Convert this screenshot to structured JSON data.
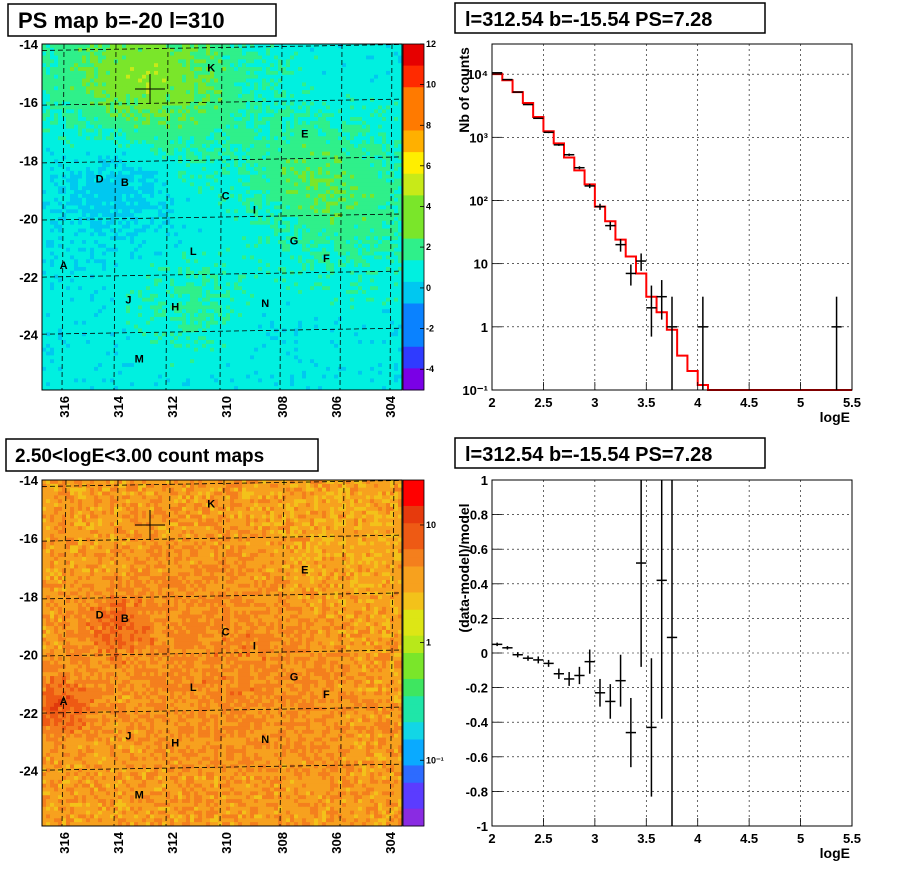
{
  "maps": [
    {
      "title": "PS map b=-20 l=310",
      "palette": "ps",
      "x_ticks": [
        "316",
        "314",
        "312",
        "310",
        "308",
        "306",
        "304"
      ],
      "y_ticks": [
        "-14",
        "-16",
        "-18",
        "-20",
        "-22",
        "-24"
      ],
      "colorbar_ticks": [
        "12",
        "10",
        "8",
        "6",
        "4",
        "2",
        "0",
        "-2",
        "-4"
      ],
      "labels": [
        {
          "t": "K"
        },
        {
          "t": "E"
        },
        {
          "t": "D"
        },
        {
          "t": "B"
        },
        {
          "t": "C"
        },
        {
          "t": "I"
        },
        {
          "t": "G"
        },
        {
          "t": "F"
        },
        {
          "t": "L"
        },
        {
          "t": "A"
        },
        {
          "t": "J"
        },
        {
          "t": "H"
        },
        {
          "t": "N"
        },
        {
          "t": "M"
        }
      ]
    },
    {
      "title": "2.50<logE<3.00 count maps",
      "palette": "counts",
      "x_ticks": [
        "316",
        "314",
        "312",
        "310",
        "308",
        "306",
        "304"
      ],
      "y_ticks": [
        "-14",
        "-16",
        "-18",
        "-20",
        "-22",
        "-24"
      ],
      "colorbar_ticks": [
        "10",
        "1",
        "10⁻¹"
      ],
      "labels": [
        {
          "t": "K"
        },
        {
          "t": "E"
        },
        {
          "t": "D"
        },
        {
          "t": "B"
        },
        {
          "t": "C"
        },
        {
          "t": "I"
        },
        {
          "t": "G"
        },
        {
          "t": "F"
        },
        {
          "t": "L"
        },
        {
          "t": "A"
        },
        {
          "t": "J"
        },
        {
          "t": "H"
        },
        {
          "t": "N"
        },
        {
          "t": "M"
        }
      ]
    }
  ],
  "chart_data": [
    {
      "type": "line",
      "title": "l=312.54 b=-15.54 PS=7.28",
      "xlabel": "logE",
      "ylabel": "Nb of counts",
      "xlim": [
        2,
        5.5
      ],
      "ylim": [
        0.1,
        30000
      ],
      "ylog": true,
      "grid": true,
      "x_ticks": [
        "2",
        "2.5",
        "3",
        "3.5",
        "4",
        "4.5",
        "5",
        "5.5"
      ],
      "y_ticks": [
        "10⁻¹",
        "1",
        "10",
        "10²",
        "10³",
        "10⁴"
      ],
      "model_color": "#ff0000",
      "model": {
        "bin_edges": [
          2.0,
          2.1,
          2.2,
          2.3,
          2.4,
          2.5,
          2.6,
          2.7,
          2.8,
          2.9,
          3.0,
          3.1,
          3.2,
          3.3,
          3.4,
          3.5,
          3.6,
          3.7,
          3.8,
          3.9,
          4.0,
          4.1,
          5.5
        ],
        "values": [
          10000,
          8000,
          5200,
          3500,
          2100,
          1250,
          800,
          480,
          300,
          180,
          80,
          47,
          24,
          13,
          7,
          3,
          1.7,
          0.9,
          0.35,
          0.2,
          0.12,
          0.1
        ]
      },
      "data": {
        "x": [
          2.05,
          2.15,
          2.25,
          2.35,
          2.45,
          2.55,
          2.65,
          2.75,
          2.85,
          2.95,
          3.05,
          3.15,
          3.25,
          3.35,
          3.45,
          3.55,
          3.65,
          3.75,
          4.05,
          5.35
        ],
        "y": [
          10500,
          8200,
          5200,
          3300,
          2000,
          1200,
          760,
          530,
          330,
          170,
          80,
          40,
          20,
          7,
          11,
          2,
          3,
          1,
          1,
          1
        ],
        "yerr_low": [
          100,
          90,
          70,
          60,
          45,
          35,
          28,
          23,
          18,
          13,
          9,
          6,
          4.5,
          2.5,
          3.3,
          1.3,
          1.7,
          0.9,
          0.9,
          0.9
        ],
        "yerr_high": [
          100,
          90,
          70,
          60,
          45,
          35,
          28,
          23,
          18,
          13,
          9,
          6,
          4.5,
          2.7,
          3.5,
          2.5,
          2.5,
          2,
          2,
          2
        ]
      }
    },
    {
      "type": "scatter",
      "title": "l=312.54 b=-15.54 PS=7.28",
      "xlabel": "logE",
      "ylabel": "(data-model)/model",
      "xlim": [
        2,
        5.5
      ],
      "ylim": [
        -1,
        1
      ],
      "grid": true,
      "x_ticks": [
        "2",
        "2.5",
        "3",
        "3.5",
        "4",
        "4.5",
        "5",
        "5.5"
      ],
      "y_ticks": [
        "1",
        "0.8",
        "0.6",
        "0.4",
        "0.2",
        "0",
        "-0.2",
        "-0.4",
        "-0.6",
        "-0.8",
        "-1"
      ],
      "x": [
        2.05,
        2.15,
        2.25,
        2.35,
        2.45,
        2.55,
        2.65,
        2.75,
        2.85,
        2.95,
        3.05,
        3.15,
        3.25,
        3.35,
        3.45,
        3.55,
        3.65,
        3.75
      ],
      "y": [
        0.05,
        0.03,
        -0.01,
        -0.03,
        -0.04,
        -0.06,
        -0.12,
        -0.15,
        -0.13,
        -0.05,
        -0.23,
        -0.28,
        -0.16,
        -0.46,
        0.52,
        -0.43,
        0.42,
        0.09
      ],
      "yerr": [
        0.01,
        0.01,
        0.015,
        0.015,
        0.02,
        0.02,
        0.03,
        0.04,
        0.05,
        0.07,
        0.08,
        0.1,
        0.15,
        0.2,
        0.6,
        0.4,
        0.8,
        1.2
      ]
    }
  ]
}
